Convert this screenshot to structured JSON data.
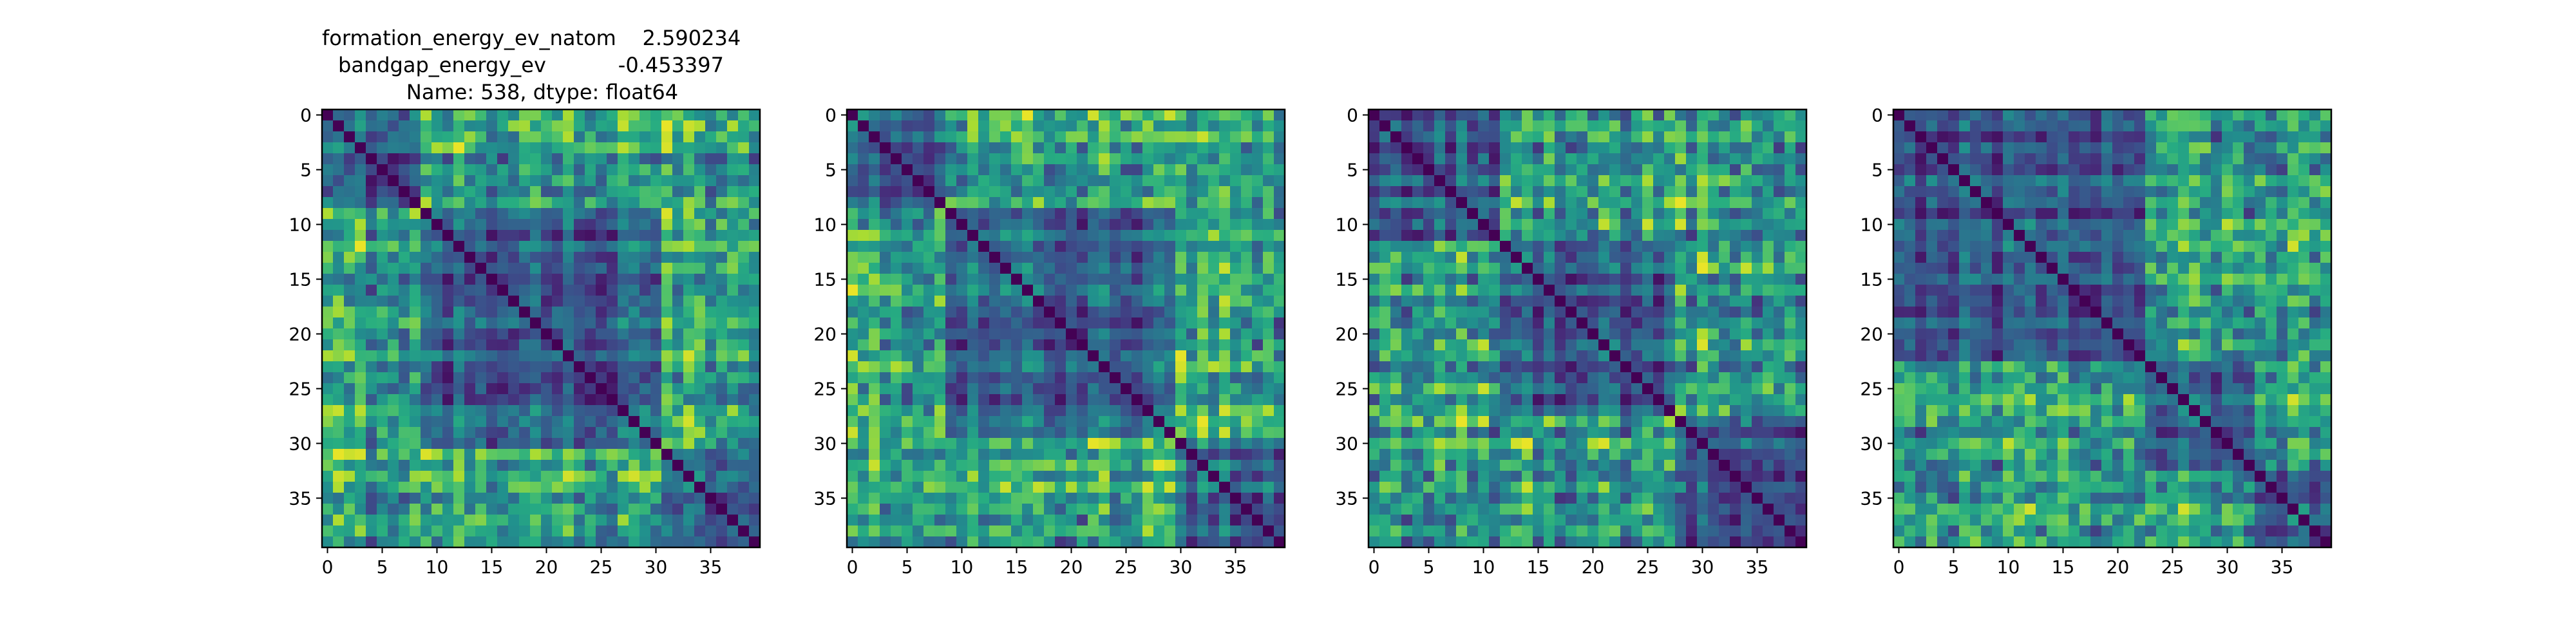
{
  "figure": {
    "title_lines": [
      "formation_energy_ev_natom    2.590234",
      "bandgap_energy_ev           -0.453397",
      "Name: 538, dtype: float64"
    ]
  },
  "chart_data": [
    {
      "type": "heatmap",
      "colormap": "viridis",
      "matrix_size": 40,
      "x_ticks": [
        0,
        5,
        10,
        15,
        20,
        25,
        30,
        35
      ],
      "y_ticks": [
        0,
        5,
        10,
        15,
        20,
        25,
        30,
        35
      ],
      "xlim": [
        -0.5,
        39.5
      ],
      "ylim": [
        39.5,
        -0.5
      ],
      "diagonal_value": 0.0,
      "blocks": [
        [
          0,
          9
        ],
        [
          9,
          31
        ],
        [
          31,
          40
        ]
      ]
    },
    {
      "type": "heatmap",
      "colormap": "viridis",
      "matrix_size": 40,
      "x_ticks": [
        0,
        5,
        10,
        15,
        20,
        25,
        30,
        35
      ],
      "y_ticks": [
        0,
        5,
        10,
        15,
        20,
        25,
        30,
        35
      ],
      "xlim": [
        -0.5,
        39.5
      ],
      "ylim": [
        39.5,
        -0.5
      ],
      "diagonal_value": 0.0,
      "blocks": [
        [
          0,
          9
        ],
        [
          9,
          30
        ],
        [
          30,
          40
        ]
      ]
    },
    {
      "type": "heatmap",
      "colormap": "viridis",
      "matrix_size": 40,
      "x_ticks": [
        0,
        5,
        10,
        15,
        20,
        25,
        30,
        35
      ],
      "y_ticks": [
        0,
        5,
        10,
        15,
        20,
        25,
        30,
        35
      ],
      "xlim": [
        -0.5,
        39.5
      ],
      "ylim": [
        39.5,
        -0.5
      ],
      "diagonal_value": 0.0,
      "blocks": [
        [
          0,
          12
        ],
        [
          12,
          28
        ],
        [
          28,
          40
        ]
      ]
    },
    {
      "type": "heatmap",
      "colormap": "viridis",
      "matrix_size": 40,
      "x_ticks": [
        0,
        5,
        10,
        15,
        20,
        25,
        30,
        35
      ],
      "y_ticks": [
        0,
        5,
        10,
        15,
        20,
        25,
        30,
        35
      ],
      "xlim": [
        -0.5,
        39.5
      ],
      "ylim": [
        39.5,
        -0.5
      ],
      "diagonal_value": 0.0,
      "blocks": [
        [
          0,
          23
        ],
        [
          23,
          33
        ],
        [
          33,
          40
        ]
      ]
    }
  ]
}
